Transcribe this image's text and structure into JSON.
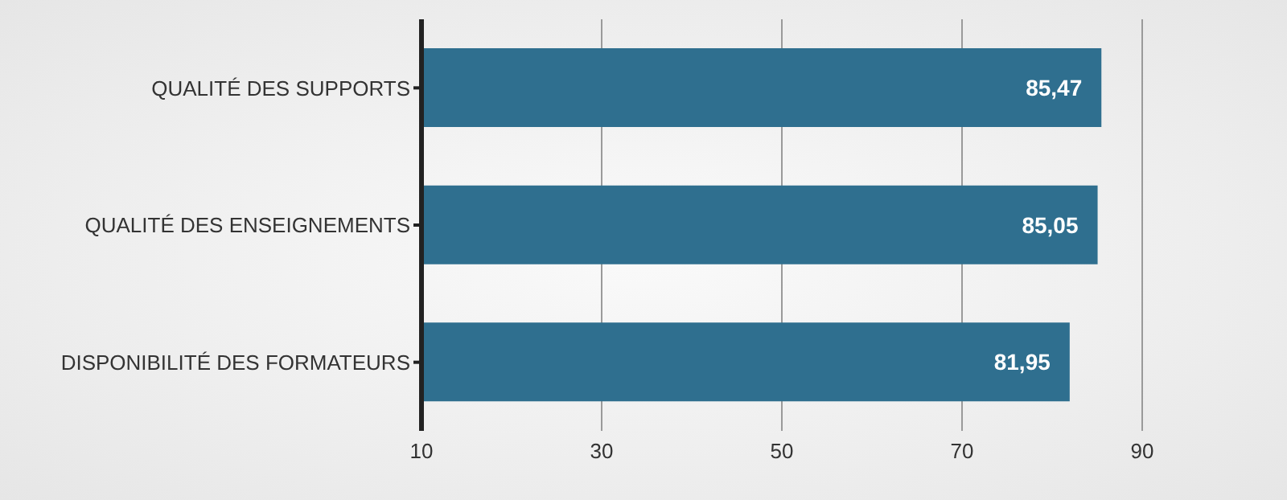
{
  "chart_data": {
    "type": "bar",
    "orientation": "horizontal",
    "categories": [
      "QUALITÉ DES SUPPORTS",
      "QUALITÉ DES ENSEIGNEMENTS",
      "DISPONIBILITÉ DES FORMATEURS"
    ],
    "values": [
      85.47,
      85.05,
      81.95
    ],
    "color": "#2f6f8f",
    "value_labels": [
      "85,47",
      "85,05",
      "81,95"
    ],
    "xlim": [
      10,
      90
    ],
    "xticks": [
      10,
      30,
      50,
      70,
      90
    ],
    "grid": "x"
  }
}
